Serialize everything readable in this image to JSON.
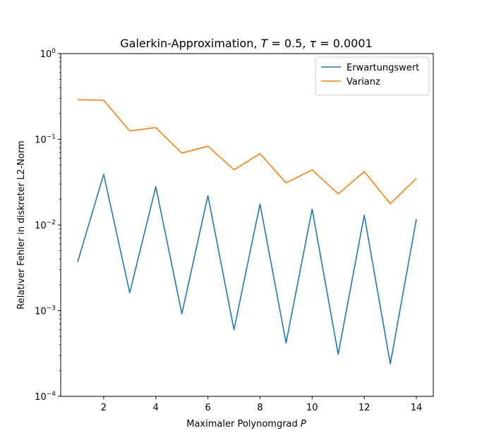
{
  "chart_data": {
    "type": "line",
    "title": "Galerkin-Approximation, T = 0.5, τ = 0.0001",
    "xlabel": "Maximaler Polynomgrad P",
    "ylabel": "Relativer Fehler in diskreter L2-Norm",
    "yscale": "log",
    "xlim": [
      0.35,
      14.65
    ],
    "ylim": [
      0.0001,
      1
    ],
    "xticks": [
      2,
      4,
      6,
      8,
      10,
      12,
      14
    ],
    "xtick_labels": [
      "2",
      "4",
      "6",
      "8",
      "10",
      "12",
      "14"
    ],
    "yticks": [
      0.0001,
      0.001,
      0.01,
      0.1,
      1
    ],
    "ytick_labels": [
      {
        "base": "10",
        "exp": "−4"
      },
      {
        "base": "10",
        "exp": "−3"
      },
      {
        "base": "10",
        "exp": "−2"
      },
      {
        "base": "10",
        "exp": "−1"
      },
      {
        "base": "10",
        "exp": "0"
      }
    ],
    "grid": false,
    "legend_position": "top-right",
    "x": [
      1,
      2,
      3,
      4,
      5,
      6,
      7,
      8,
      9,
      10,
      11,
      12,
      13,
      14
    ],
    "series": [
      {
        "name": "Erwartungswert",
        "color": "#1f77b4",
        "values": [
          0.0037,
          0.039,
          0.00162,
          0.028,
          0.00092,
          0.022,
          0.0006,
          0.0175,
          0.00042,
          0.0153,
          0.00031,
          0.013,
          0.00024,
          0.0117
        ]
      },
      {
        "name": "Varianz",
        "color": "#ff7f0e",
        "values": [
          0.29,
          0.285,
          0.125,
          0.137,
          0.069,
          0.083,
          0.044,
          0.068,
          0.031,
          0.044,
          0.023,
          0.042,
          0.0177,
          0.035
        ]
      }
    ]
  }
}
